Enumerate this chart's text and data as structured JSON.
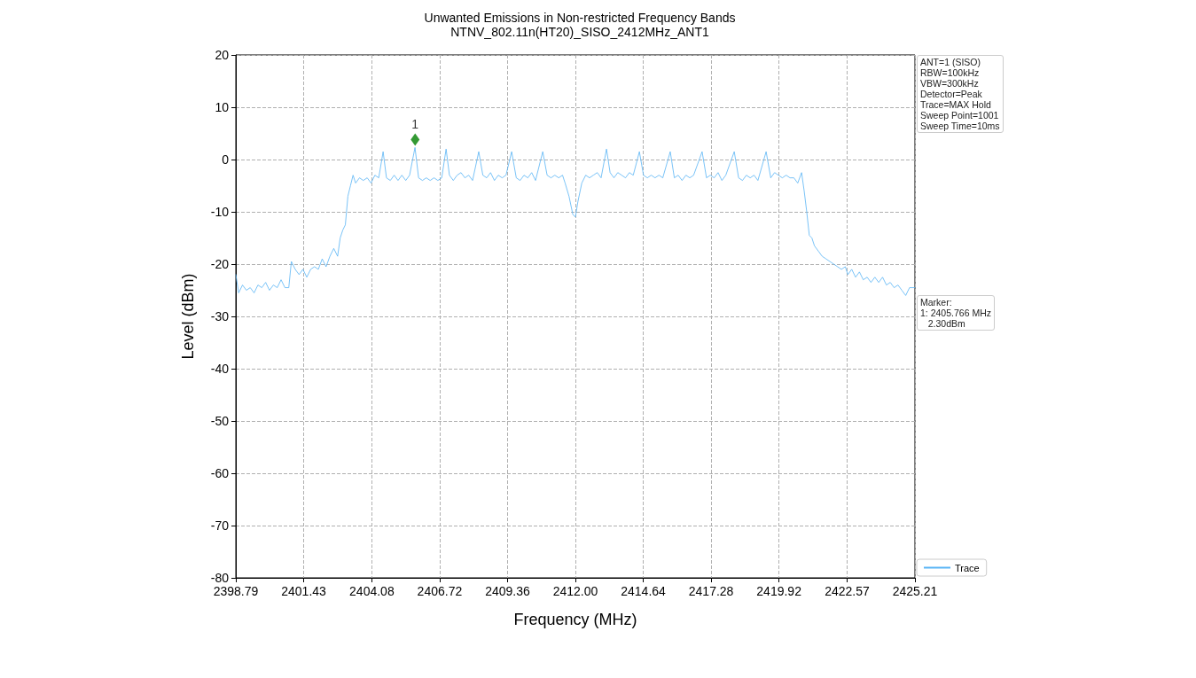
{
  "chart_data": {
    "type": "line",
    "title": "Unwanted Emissions in Non-restricted Frequency Bands",
    "subtitle": "NTNV_802.11n(HT20)_SISO_2412MHz_ANT1",
    "xlabel": "Frequency (MHz)",
    "ylabel": "Level (dBm)",
    "annotations": [
      "ANT=1 (SISO)\nRBW=100kHz\nVBW=300kHz\nDetector=Peak\nTrace=MAX Hold\nSweep Point=1001\nSweep Time=10ms",
      "Marker:\n1: 2405.766 MHz\n   2.30dBm"
    ],
    "xlim": [
      2398.79,
      2425.21
    ],
    "xticks": [
      2398.79,
      2401.43,
      2404.08,
      2406.72,
      2409.36,
      {
        "value": 2412,
        "label": "2412.00"
      },
      2414.64,
      2417.28,
      2419.92,
      2422.57,
      2425.21
    ],
    "ylim": [
      -80,
      20
    ],
    "yticks": [
      -80,
      -70,
      -60,
      -50,
      -40,
      -30,
      -20,
      -10,
      0,
      10,
      20
    ],
    "grid": true,
    "legend": "bottom right",
    "line_style": "solid",
    "series": [
      {
        "name": "Trace",
        "type": "line",
        "color": "#58b4f5",
        "marker": "none",
        "x": [
          2398.79,
          2398.9,
          2399.05,
          2399.2,
          2399.35,
          2399.5,
          2399.65,
          2399.8,
          2399.95,
          2400.1,
          2400.25,
          2400.4,
          2400.55,
          2400.7,
          2400.85,
          2400.95,
          2401.1,
          2401.25,
          2401.4,
          2401.55,
          2401.7,
          2401.85,
          2402.0,
          2402.15,
          2402.3,
          2402.45,
          2402.6,
          2402.75,
          2402.85,
          2402.95,
          2403.05,
          2403.15,
          2403.25,
          2403.35,
          2403.45,
          2403.6,
          2403.75,
          2403.9,
          2404.05,
          2404.2,
          2404.35,
          2404.52,
          2404.65,
          2404.8,
          2404.95,
          2405.1,
          2405.25,
          2405.4,
          2405.55,
          2405.76,
          2405.9,
          2406.05,
          2406.2,
          2406.35,
          2406.5,
          2406.65,
          2406.8,
          2406.97,
          2407.1,
          2407.25,
          2407.4,
          2407.55,
          2407.7,
          2407.85,
          2408.0,
          2408.24,
          2408.4,
          2408.55,
          2408.7,
          2408.85,
          2409.0,
          2409.15,
          2409.3,
          2409.52,
          2409.7,
          2409.85,
          2410.0,
          2410.15,
          2410.3,
          2410.45,
          2410.73,
          2410.9,
          2411.05,
          2411.2,
          2411.35,
          2411.5,
          2411.6,
          2411.75,
          2411.9,
          2412.0,
          2412.1,
          2412.25,
          2412.4,
          2412.55,
          2412.7,
          2412.85,
          2413.0,
          2413.21,
          2413.35,
          2413.5,
          2413.65,
          2413.8,
          2413.95,
          2414.1,
          2414.25,
          2414.49,
          2414.65,
          2414.8,
          2414.95,
          2415.1,
          2415.25,
          2415.4,
          2415.69,
          2415.85,
          2416.0,
          2416.15,
          2416.3,
          2416.45,
          2416.6,
          2416.93,
          2417.1,
          2417.25,
          2417.4,
          2417.55,
          2417.7,
          2417.85,
          2418.18,
          2418.35,
          2418.5,
          2418.65,
          2418.8,
          2418.95,
          2419.1,
          2419.42,
          2419.6,
          2419.75,
          2419.9,
          2420.05,
          2420.2,
          2420.35,
          2420.5,
          2420.65,
          2420.8,
          2420.9,
          2421.0,
          2421.1,
          2421.2,
          2421.3,
          2421.45,
          2421.6,
          2421.75,
          2421.9,
          2422.05,
          2422.2,
          2422.35,
          2422.5,
          2422.6,
          2422.75,
          2422.9,
          2423.05,
          2423.2,
          2423.35,
          2423.5,
          2423.65,
          2423.8,
          2423.95,
          2424.1,
          2424.25,
          2424.4,
          2424.55,
          2424.7,
          2424.85,
          2425.0,
          2425.21
        ],
        "values": [
          -22,
          -25.5,
          -24,
          -25,
          -24.5,
          -25.5,
          -24,
          -24.5,
          -23.5,
          -25,
          -24,
          -24.5,
          -23,
          -24.5,
          -24.5,
          -19.5,
          -21,
          -22,
          -21,
          -22.5,
          -21,
          -20.5,
          -21,
          -19,
          -20.5,
          -18.5,
          -17,
          -18.5,
          -15,
          -13.5,
          -12.5,
          -7,
          -5,
          -3,
          -4.5,
          -3.5,
          -4,
          -3.5,
          -4.5,
          -3,
          -3.5,
          1.5,
          -3.5,
          -4,
          -3,
          -4,
          -3,
          -4,
          -3,
          2.3,
          -3.5,
          -4,
          -3.5,
          -4,
          -3.5,
          -4,
          -3.5,
          2,
          -3,
          -4,
          -3,
          -2.5,
          -3.5,
          -3,
          -4,
          1.5,
          -3,
          -3.5,
          -2.5,
          -4,
          -3,
          -3.5,
          -3,
          1.5,
          -3.5,
          -4,
          -3,
          -3.5,
          -2.5,
          -4,
          1.5,
          -3,
          -3.5,
          -3,
          -3.5,
          -3,
          -4.5,
          -7,
          -10.5,
          -11,
          -8,
          -4.5,
          -3,
          -3.5,
          -3,
          -2.5,
          -3.5,
          2,
          -2.5,
          -3.5,
          -2.5,
          -3,
          -3.5,
          -2.5,
          -3,
          1.5,
          -3,
          -3.5,
          -3,
          -3.5,
          -3,
          -3.5,
          1.5,
          -3.5,
          -3,
          -4,
          -3,
          -3.5,
          -3,
          1.5,
          -3.5,
          -3,
          -3.5,
          -2.5,
          -4,
          -3,
          1.5,
          -3.5,
          -4,
          -3,
          -3.5,
          -3,
          -4,
          1.5,
          -3.5,
          -2.5,
          -3,
          -3.5,
          -3,
          -3.5,
          -3.5,
          -4.5,
          -2.5,
          -6,
          -10,
          -14.5,
          -15,
          -16.5,
          -17.5,
          -18.5,
          -19,
          -19.5,
          -20,
          -20.5,
          -21,
          -20.5,
          -22,
          -21,
          -22.5,
          -21.5,
          -23,
          -22.5,
          -23.5,
          -22.5,
          -23.5,
          -22.5,
          -24,
          -23.5,
          -24.5,
          -24,
          -25,
          -26,
          -24.5,
          -24.5
        ]
      },
      {
        "name": "1",
        "type": "scatter",
        "color": "#008000",
        "marker": "diamond",
        "x": [
          2405.766
        ],
        "values": [
          3.8
        ]
      }
    ]
  }
}
